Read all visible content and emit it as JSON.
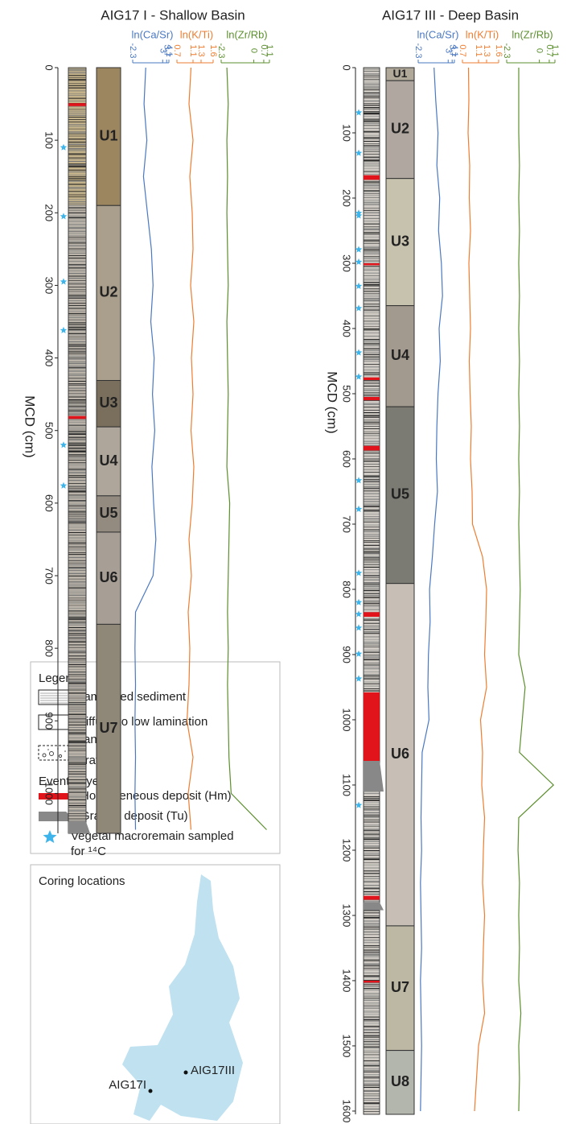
{
  "panels": [
    {
      "title": "AIG17 I - Shallow Basin",
      "axis_label": "MCD (cm)",
      "ylim": [
        0,
        1055
      ],
      "depth_ticks": [
        0,
        100,
        200,
        300,
        400,
        500,
        600,
        700,
        800,
        900,
        1000
      ],
      "depths": [
        0,
        50,
        100,
        150,
        200,
        250,
        300,
        350,
        400,
        450,
        500,
        550,
        600,
        650,
        700,
        750,
        800,
        850,
        900,
        950,
        1000,
        1050
      ],
      "curves": [
        {
          "name": "ln(Ca/Sr)",
          "color": "#4a78c2",
          "xlim": [
            -2.3,
            4.1
          ],
          "ticks": [
            -2.3,
            3,
            3.7,
            4.1
          ],
          "values": [
            0.0,
            -0.3,
            0.2,
            -0.4,
            0.3,
            1.0,
            1.3,
            0.9,
            1.5,
            1.2,
            1.6,
            1.1,
            1.4,
            1.8,
            1.3,
            -1.8,
            -1.9,
            -1.8,
            -1.9,
            -1.8,
            -1.9,
            -1.8
          ]
        },
        {
          "name": "ln(K/Ti)",
          "color": "#ee7d31",
          "xlim": [
            0.7,
            1.6
          ],
          "ticks": [
            0.7,
            1.1,
            1.3,
            1.6
          ],
          "values": [
            1.05,
            1.0,
            1.1,
            1.02,
            1.08,
            1.1,
            1.04,
            1.12,
            1.06,
            1.1,
            1.05,
            1.12,
            1.08,
            1.0,
            1.06,
            0.98,
            1.02,
            1.0,
            0.95,
            1.1,
            0.98,
            1.05
          ]
        },
        {
          "name": "ln(Zr/Rb)",
          "color": "#5c8f2e",
          "xlim": [
            -2.3,
            1.1
          ],
          "ticks": [
            -2.3,
            0,
            0.7,
            1.1
          ],
          "values": [
            -1.9,
            -1.8,
            -1.9,
            -1.85,
            -1.9,
            -1.85,
            -1.8,
            -1.9,
            -1.85,
            -1.8,
            -1.85,
            -1.9,
            -1.7,
            -1.75,
            -1.8,
            -1.85,
            -1.8,
            -1.85,
            -1.8,
            -1.75,
            -1.6,
            0.9
          ]
        }
      ],
      "units": [
        {
          "label": "U1",
          "top": 0,
          "bottom": 190,
          "color": "#9c8660"
        },
        {
          "label": "U2",
          "top": 190,
          "bottom": 431,
          "color": "#aa9f8c"
        },
        {
          "label": "U3",
          "top": 431,
          "bottom": 495,
          "color": "#7a6e5c"
        },
        {
          "label": "U4",
          "top": 495,
          "bottom": 590,
          "color": "#aea69a"
        },
        {
          "label": "U5",
          "top": 590,
          "bottom": 640,
          "color": "#948b80"
        },
        {
          "label": "U6",
          "top": 640,
          "bottom": 767,
          "color": "#a79f96"
        },
        {
          "label": "U7",
          "top": 767,
          "bottom": 1055,
          "color": "#8f8778"
        }
      ],
      "homogeneous_layers": [
        [
          49,
          53
        ],
        [
          480,
          484
        ]
      ],
      "graded_layers": [
        [
          1039,
          1055
        ]
      ],
      "samples": [
        110,
        205,
        295,
        362,
        520,
        576
      ]
    },
    {
      "title": "AIG17 III - Deep Basin",
      "axis_label": "MCD (cm)",
      "ylim": [
        0,
        1605
      ],
      "depth_ticks": [
        0,
        100,
        200,
        300,
        400,
        500,
        600,
        700,
        800,
        900,
        1000,
        1100,
        1200,
        1300,
        1400,
        1500,
        1600
      ],
      "depths": [
        0,
        50,
        100,
        150,
        200,
        250,
        300,
        350,
        400,
        450,
        500,
        550,
        600,
        650,
        700,
        750,
        800,
        850,
        900,
        950,
        1000,
        1050,
        1100,
        1150,
        1200,
        1250,
        1300,
        1350,
        1400,
        1450,
        1500,
        1550,
        1600
      ],
      "curves": [
        {
          "name": "ln(Ca/Sr)",
          "color": "#4a78c2",
          "xlim": [
            -2.3,
            4.1
          ],
          "ticks": [
            -2.3,
            3,
            3.7,
            4.1
          ],
          "values": [
            0.5,
            0.8,
            1.2,
            1.0,
            1.5,
            1.3,
            1.8,
            2.0,
            1.4,
            1.6,
            1.2,
            1.0,
            0.9,
            1.1,
            0.6,
            0.2,
            -0.3,
            -0.2,
            -0.5,
            -0.6,
            -0.4,
            -1.6,
            -1.7,
            -1.8,
            -1.7,
            -1.9,
            -1.8,
            -1.7,
            -1.9,
            -1.8,
            -1.7,
            -1.8,
            -1.9
          ]
        },
        {
          "name": "ln(K/Ti)",
          "color": "#ee7d31",
          "xlim": [
            0.7,
            1.6
          ],
          "ticks": [
            0.7,
            1.1,
            1.3,
            1.6
          ],
          "values": [
            0.85,
            0.86,
            0.84,
            0.88,
            0.87,
            0.9,
            0.86,
            0.88,
            0.9,
            0.87,
            0.89,
            0.92,
            0.9,
            0.94,
            0.95,
            1.2,
            1.3,
            1.28,
            1.25,
            1.3,
            1.15,
            1.2,
            1.18,
            1.25,
            1.22,
            1.2,
            1.25,
            1.22,
            1.2,
            1.25,
            1.1,
            1.05,
            1.0
          ]
        },
        {
          "name": "ln(Zr/Rb)",
          "color": "#5c8f2e",
          "xlim": [
            -2.3,
            1.1
          ],
          "ticks": [
            -2.3,
            0,
            0.7,
            1.1
          ],
          "values": [
            -1.45,
            -1.45,
            -1.45,
            -1.4,
            -1.45,
            -1.4,
            -1.45,
            -1.4,
            -1.45,
            -1.4,
            -1.45,
            -1.4,
            -1.45,
            -1.4,
            -1.45,
            -1.4,
            -1.35,
            -1.4,
            -1.45,
            -1.0,
            -1.2,
            -1.4,
            1.0,
            -1.45,
            -1.5,
            -1.4,
            -1.45,
            -1.4,
            -1.45,
            -1.3,
            -1.45,
            -1.4,
            -1.45
          ]
        }
      ],
      "units": [
        {
          "label": "U1",
          "top": 0,
          "bottom": 20,
          "color": "#b0a99a"
        },
        {
          "label": "U2",
          "top": 20,
          "bottom": 170,
          "color": "#b0a8a0"
        },
        {
          "label": "U3",
          "top": 170,
          "bottom": 365,
          "color": "#c7c2ad"
        },
        {
          "label": "U4",
          "top": 365,
          "bottom": 520,
          "color": "#a39a8f"
        },
        {
          "label": "U5",
          "top": 520,
          "bottom": 791,
          "color": "#7b7b73"
        },
        {
          "label": "U6",
          "top": 791,
          "bottom": 1316,
          "color": "#c7bfb6"
        },
        {
          "label": "U7",
          "top": 1316,
          "bottom": 1507,
          "color": "#bcb8a3"
        },
        {
          "label": "U8",
          "top": 1507,
          "bottom": 1605,
          "color": "#b3b6ad"
        }
      ],
      "homogeneous_layers": [
        [
          165,
          172
        ],
        [
          300,
          303
        ],
        [
          475,
          479
        ],
        [
          505,
          510
        ],
        [
          580,
          587
        ],
        [
          835,
          842
        ],
        [
          958,
          1063
        ],
        [
          1270,
          1276
        ],
        [
          1400,
          1403
        ]
      ],
      "graded_layers": [
        [
          1063,
          1110
        ],
        [
          1280,
          1292
        ]
      ],
      "samples": [
        69,
        131,
        223,
        227,
        279,
        298,
        335,
        369,
        437,
        474,
        633,
        677,
        775,
        820,
        838,
        859,
        899,
        937,
        1131
      ]
    }
  ],
  "legend": {
    "title": "Legend:",
    "laminated": "Laminated sediment",
    "diffuse": "Diffuse to low lamination",
    "sand": "Sand",
    "gravel": "Gravel",
    "events": "Event Layers:",
    "homogeneous": "Homogeneous deposit (Hm)",
    "graded": "Graded deposit (Tu)",
    "sample_line1": "Vegetal macroremain sampled",
    "sample_line2": "for ¹⁴C"
  },
  "map": {
    "title": "Coring locations",
    "site_shallow": "AIG17I",
    "site_deep": "AIG17III"
  }
}
